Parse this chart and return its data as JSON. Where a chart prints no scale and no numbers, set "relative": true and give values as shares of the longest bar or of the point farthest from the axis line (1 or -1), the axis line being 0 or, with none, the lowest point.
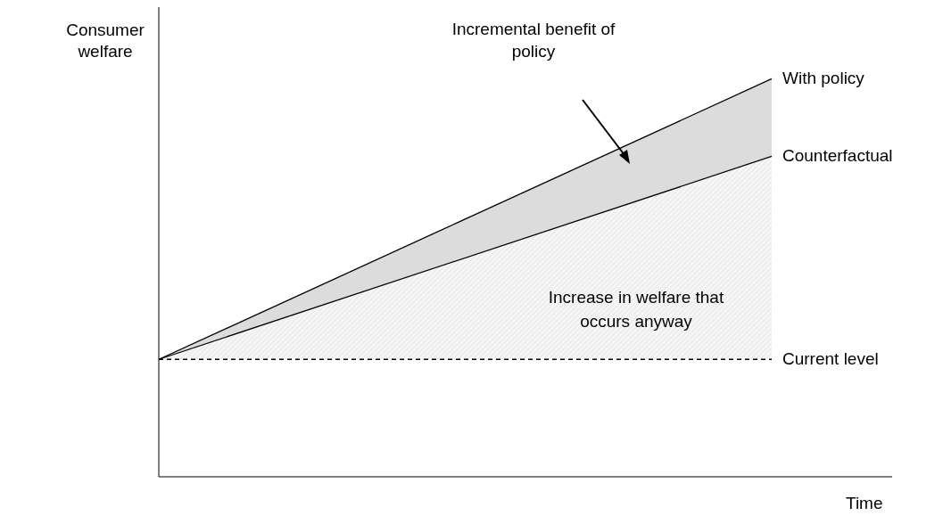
{
  "chart_data": {
    "type": "line",
    "relative": true,
    "ylabel": "Consumer welfare",
    "xlabel": "Time",
    "categories": [
      null,
      null
    ],
    "marker": "none",
    "annotations": [
      "Incremental benefit of policy",
      "Increase in welfare that occurs anyway"
    ],
    "series": [
      {
        "name": "With policy",
        "color": "#000000",
        "values": [
          0.295,
          1
        ],
        "lower": [
          0.295,
          0.805
        ],
        "upper": [
          0.295,
          1
        ]
      },
      {
        "name": "Counterfactual",
        "color": "#000000",
        "values": [
          0.295,
          0.805
        ],
        "lower": [
          0.295,
          0.295
        ],
        "upper": [
          0.295,
          0.805
        ]
      },
      {
        "name": "Current level",
        "color": "#000000",
        "values": [
          0.295,
          0.295
        ],
        "line_style": "dashed"
      }
    ]
  }
}
